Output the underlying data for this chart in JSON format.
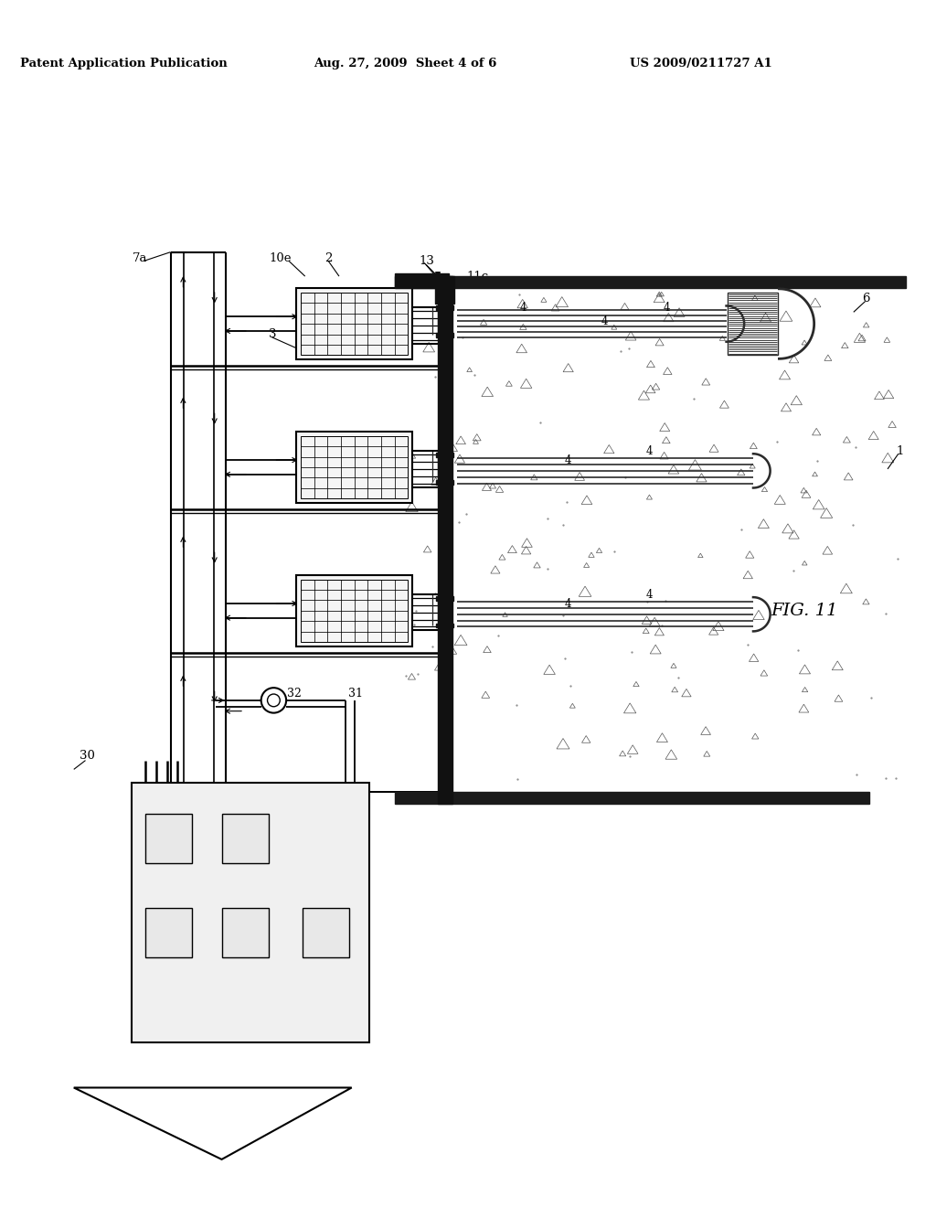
{
  "header_left": "Patent Application Publication",
  "header_mid": "Aug. 27, 2009  Sheet 4 of 6",
  "header_right": "US 2009/0211727 A1",
  "fig_label": "FIG. 11",
  "bg": "#ffffff"
}
